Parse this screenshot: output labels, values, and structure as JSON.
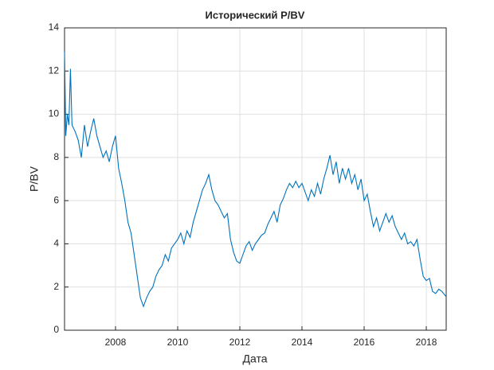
{
  "chart_data": {
    "type": "line",
    "title": "Исторический P/BV",
    "x_label": "Дата",
    "y_label": "P/BV",
    "xlim": [
      2006.36,
      2018.64
    ],
    "xticks": [
      2008,
      2010,
      2012,
      2014,
      2016,
      2018
    ],
    "ylim": [
      0,
      14
    ],
    "yticks": [
      0,
      2,
      4,
      6,
      8,
      10,
      12,
      14
    ],
    "grid": true,
    "series": [
      {
        "name": "P/BV",
        "color": "#0072bd",
        "x": [
          2006.36,
          2006.4,
          2006.45,
          2006.5,
          2006.55,
          2006.6,
          2006.7,
          2006.8,
          2006.9,
          2007.0,
          2007.1,
          2007.2,
          2007.3,
          2007.4,
          2007.5,
          2007.6,
          2007.7,
          2007.8,
          2007.9,
          2008.0,
          2008.1,
          2008.2,
          2008.3,
          2008.4,
          2008.5,
          2008.6,
          2008.7,
          2008.8,
          2008.9,
          2009.0,
          2009.1,
          2009.2,
          2009.3,
          2009.4,
          2009.5,
          2009.6,
          2009.7,
          2009.8,
          2009.9,
          2010.0,
          2010.1,
          2010.2,
          2010.3,
          2010.4,
          2010.5,
          2010.6,
          2010.7,
          2010.8,
          2010.9,
          2011.0,
          2011.1,
          2011.2,
          2011.3,
          2011.4,
          2011.5,
          2011.6,
          2011.7,
          2011.8,
          2011.9,
          2012.0,
          2012.1,
          2012.2,
          2012.3,
          2012.4,
          2012.5,
          2012.6,
          2012.7,
          2012.8,
          2012.9,
          2013.0,
          2013.1,
          2013.2,
          2013.3,
          2013.4,
          2013.5,
          2013.6,
          2013.7,
          2013.8,
          2013.9,
          2014.0,
          2014.1,
          2014.2,
          2014.3,
          2014.4,
          2014.5,
          2014.6,
          2014.7,
          2014.8,
          2014.9,
          2015.0,
          2015.1,
          2015.2,
          2015.3,
          2015.4,
          2015.5,
          2015.6,
          2015.7,
          2015.8,
          2015.9,
          2016.0,
          2016.1,
          2016.2,
          2016.3,
          2016.4,
          2016.5,
          2016.6,
          2016.7,
          2016.8,
          2016.9,
          2017.0,
          2017.1,
          2017.2,
          2017.3,
          2017.4,
          2017.5,
          2017.6,
          2017.7,
          2017.8,
          2017.9,
          2018.0,
          2018.1,
          2018.2,
          2018.3,
          2018.4,
          2018.5,
          2018.64
        ],
        "values": [
          12.9,
          9.0,
          10.0,
          9.5,
          12.1,
          9.5,
          9.2,
          8.8,
          8.0,
          9.5,
          8.5,
          9.2,
          9.8,
          9.0,
          8.5,
          8.0,
          8.3,
          7.8,
          8.5,
          9.0,
          7.5,
          6.8,
          6.0,
          5.0,
          4.5,
          3.5,
          2.5,
          1.5,
          1.1,
          1.5,
          1.8,
          2.0,
          2.5,
          2.8,
          3.0,
          3.5,
          3.2,
          3.8,
          4.0,
          4.2,
          4.5,
          4.0,
          4.6,
          4.3,
          5.0,
          5.5,
          6.0,
          6.5,
          6.8,
          7.2,
          6.5,
          6.0,
          5.8,
          5.5,
          5.2,
          5.4,
          4.2,
          3.6,
          3.2,
          3.1,
          3.5,
          3.9,
          4.1,
          3.7,
          4.0,
          4.2,
          4.4,
          4.5,
          4.9,
          5.2,
          5.5,
          5.0,
          5.8,
          6.1,
          6.5,
          6.8,
          6.6,
          6.9,
          6.6,
          6.8,
          6.4,
          6.0,
          6.5,
          6.2,
          6.8,
          6.3,
          7.0,
          7.5,
          8.1,
          7.2,
          7.8,
          6.8,
          7.5,
          7.0,
          7.5,
          6.8,
          7.2,
          6.5,
          7.0,
          6.0,
          6.3,
          5.5,
          4.8,
          5.2,
          4.6,
          5.0,
          5.4,
          5.0,
          5.3,
          4.8,
          4.5,
          4.2,
          4.5,
          4.0,
          4.1,
          3.9,
          4.2,
          3.3,
          2.5,
          2.3,
          2.4,
          1.8,
          1.7,
          1.9,
          1.8,
          1.55
        ]
      }
    ]
  }
}
